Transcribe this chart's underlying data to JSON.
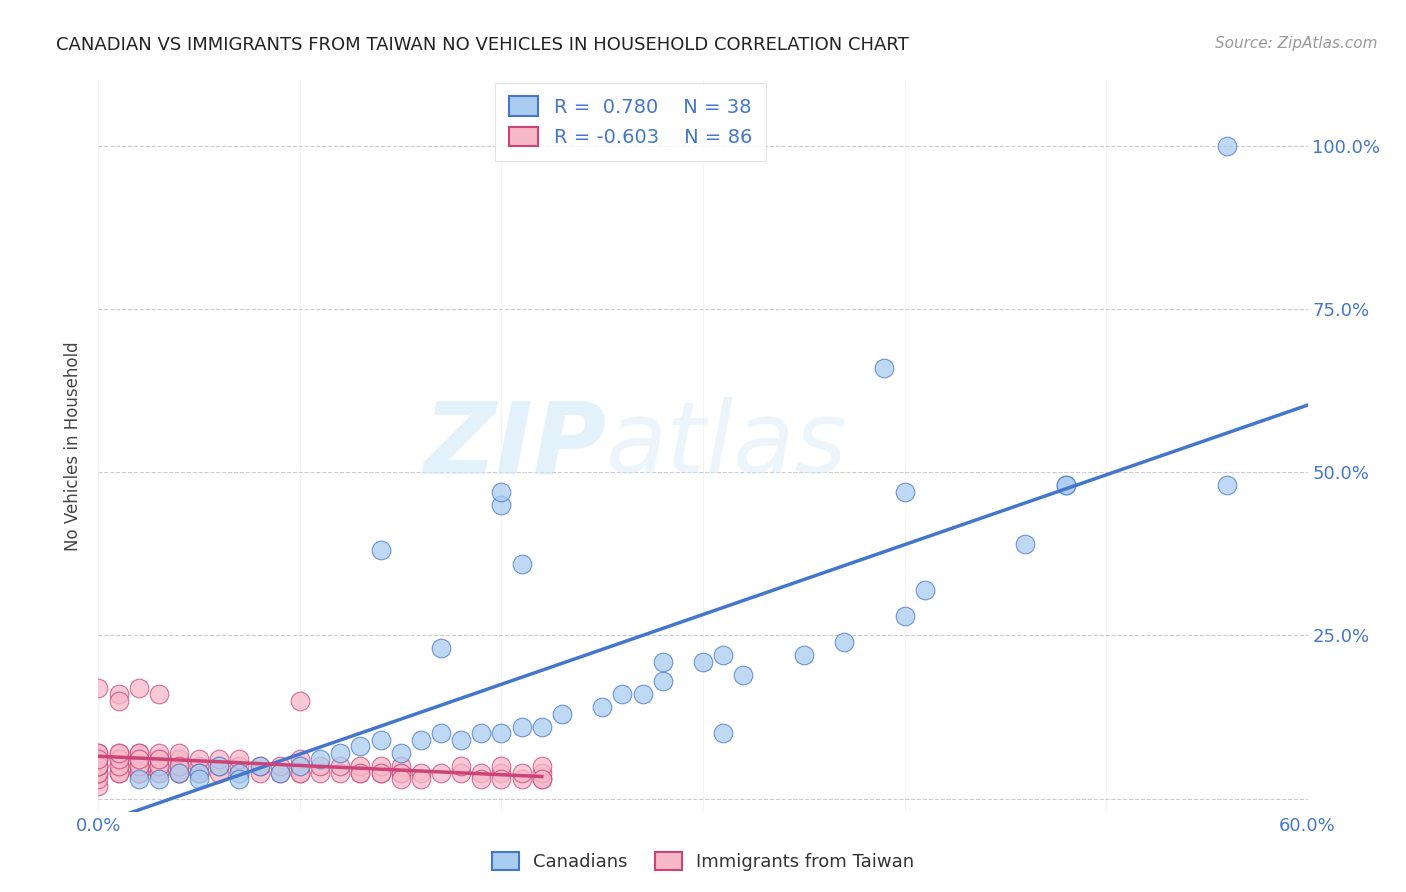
{
  "title": "CANADIAN VS IMMIGRANTS FROM TAIWAN NO VEHICLES IN HOUSEHOLD CORRELATION CHART",
  "source": "Source: ZipAtlas.com",
  "ylabel": "No Vehicles in Household",
  "xlim": [
    0.0,
    0.6
  ],
  "ylim": [
    -0.02,
    1.1
  ],
  "xticks": [
    0.0,
    0.1,
    0.2,
    0.3,
    0.4,
    0.5,
    0.6
  ],
  "xticklabels": [
    "0.0%",
    "",
    "",
    "",
    "",
    "",
    "60.0%"
  ],
  "yticks": [
    0.0,
    0.25,
    0.5,
    0.75,
    1.0
  ],
  "yticklabels_right": [
    "",
    "25.0%",
    "50.0%",
    "75.0%",
    "100.0%"
  ],
  "grid_color": "#cccccc",
  "background_color": "#ffffff",
  "canadians_color": "#aaccf0",
  "taiwan_color": "#f7b8c8",
  "line_canadian_color": "#4477cc",
  "line_taiwan_color": "#cc4477",
  "R_canadian": 0.78,
  "N_canadian": 38,
  "R_taiwan": -0.603,
  "N_taiwan": 86,
  "watermark_zip": "ZIP",
  "watermark_atlas": "atlas",
  "canadians_x": [
    0.02,
    0.03,
    0.04,
    0.05,
    0.05,
    0.06,
    0.07,
    0.07,
    0.08,
    0.09,
    0.1,
    0.11,
    0.12,
    0.13,
    0.14,
    0.15,
    0.16,
    0.17,
    0.18,
    0.19,
    0.2,
    0.21,
    0.22,
    0.23,
    0.25,
    0.26,
    0.27,
    0.28,
    0.3,
    0.31,
    0.32,
    0.35,
    0.37,
    0.4,
    0.41,
    0.46,
    0.48,
    0.56
  ],
  "canadians_y": [
    0.03,
    0.03,
    0.04,
    0.04,
    0.03,
    0.05,
    0.04,
    0.03,
    0.05,
    0.04,
    0.05,
    0.06,
    0.07,
    0.08,
    0.09,
    0.07,
    0.09,
    0.1,
    0.09,
    0.1,
    0.1,
    0.11,
    0.11,
    0.13,
    0.14,
    0.16,
    0.16,
    0.18,
    0.21,
    0.22,
    0.19,
    0.22,
    0.24,
    0.28,
    0.32,
    0.39,
    0.48,
    0.48
  ],
  "canadians_x2": [
    0.14,
    0.17,
    0.2,
    0.2,
    0.21,
    0.28,
    0.31,
    0.39,
    0.4,
    0.48,
    0.56
  ],
  "canadians_y2": [
    0.38,
    0.23,
    0.45,
    0.47,
    0.36,
    0.21,
    0.1,
    0.66,
    0.47,
    0.48,
    1.0
  ],
  "taiwan_x": [
    0.0,
    0.0,
    0.0,
    0.0,
    0.0,
    0.0,
    0.0,
    0.0,
    0.0,
    0.0,
    0.0,
    0.0,
    0.01,
    0.01,
    0.01,
    0.01,
    0.01,
    0.01,
    0.01,
    0.01,
    0.02,
    0.02,
    0.02,
    0.02,
    0.02,
    0.02,
    0.02,
    0.02,
    0.02,
    0.02,
    0.02,
    0.03,
    0.03,
    0.03,
    0.03,
    0.03,
    0.03,
    0.03,
    0.04,
    0.04,
    0.04,
    0.04,
    0.04,
    0.04,
    0.05,
    0.05,
    0.05,
    0.05,
    0.06,
    0.06,
    0.06,
    0.07,
    0.07,
    0.07,
    0.08,
    0.08,
    0.09,
    0.09,
    0.1,
    0.1,
    0.1,
    0.1,
    0.11,
    0.11,
    0.12,
    0.12,
    0.13,
    0.13,
    0.14,
    0.14,
    0.15,
    0.15,
    0.15,
    0.16,
    0.17,
    0.18,
    0.18,
    0.19,
    0.2,
    0.2,
    0.21,
    0.21,
    0.22,
    0.22,
    0.22,
    0.22
  ],
  "taiwan_y": [
    0.02,
    0.03,
    0.04,
    0.05,
    0.06,
    0.07,
    0.04,
    0.05,
    0.06,
    0.07,
    0.05,
    0.06,
    0.04,
    0.05,
    0.06,
    0.07,
    0.04,
    0.05,
    0.06,
    0.07,
    0.04,
    0.05,
    0.06,
    0.07,
    0.04,
    0.05,
    0.06,
    0.07,
    0.04,
    0.05,
    0.06,
    0.04,
    0.05,
    0.06,
    0.07,
    0.04,
    0.05,
    0.06,
    0.04,
    0.05,
    0.06,
    0.07,
    0.04,
    0.05,
    0.04,
    0.05,
    0.06,
    0.04,
    0.04,
    0.05,
    0.06,
    0.04,
    0.05,
    0.06,
    0.04,
    0.05,
    0.04,
    0.05,
    0.04,
    0.05,
    0.06,
    0.04,
    0.04,
    0.05,
    0.04,
    0.05,
    0.04,
    0.05,
    0.04,
    0.05,
    0.04,
    0.05,
    0.04,
    0.04,
    0.04,
    0.04,
    0.05,
    0.04,
    0.04,
    0.05,
    0.03,
    0.04,
    0.03,
    0.04,
    0.05,
    0.03
  ],
  "taiwan_extra_x": [
    0.0,
    0.01,
    0.01,
    0.02,
    0.03,
    0.1,
    0.13,
    0.14,
    0.15,
    0.16,
    0.19,
    0.2
  ],
  "taiwan_extra_y": [
    0.17,
    0.16,
    0.15,
    0.17,
    0.16,
    0.15,
    0.04,
    0.04,
    0.03,
    0.03,
    0.03,
    0.03
  ],
  "legend_label_canadian": "Canadians",
  "legend_label_taiwan": "Immigrants from Taiwan"
}
